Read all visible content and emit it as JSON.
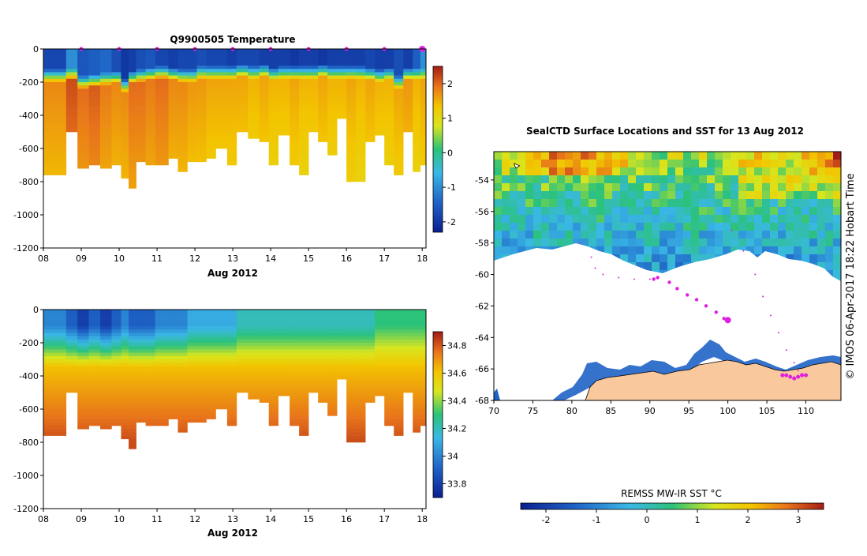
{
  "chart_data": [
    {
      "type": "heatmap",
      "id": "temperature",
      "title": "Q9900505  Temperature",
      "xlabel": "Aug 2012",
      "ylabel": "",
      "x_ticks": [
        "08",
        "09",
        "10",
        "11",
        "12",
        "13",
        "14",
        "15",
        "16",
        "17",
        "18"
      ],
      "y_ticks": [
        "0",
        "-200",
        "-400",
        "-600",
        "-800",
        "-1000",
        "-1200"
      ],
      "ylim": [
        -1200,
        0
      ],
      "xlim": [
        8.0,
        18.1
      ],
      "colorbar": {
        "ticks": [
          "-2",
          "-1",
          "0",
          "1",
          "2"
        ],
        "range": [
          -2.3,
          2.5
        ]
      },
      "profile_markers_day": [
        9.0,
        10.0,
        11.0,
        12.0,
        13.0,
        14.0,
        15.0,
        16.0,
        17.0,
        18.0
      ],
      "profiles": {
        "times": [
          8.0,
          8.6,
          8.9,
          9.2,
          9.5,
          9.8,
          10.05,
          10.25,
          10.45,
          10.7,
          10.95,
          11.3,
          11.55,
          11.8,
          12.05,
          12.3,
          12.55,
          12.85,
          13.1,
          13.4,
          13.7,
          13.95,
          14.2,
          14.5,
          14.75,
          15.0,
          15.25,
          15.5,
          15.75,
          16.0,
          16.25,
          16.5,
          16.75,
          17.0,
          17.25,
          17.5,
          17.75,
          17.95,
          18.1
        ],
        "max_depth": [
          750,
          500,
          710,
          690,
          720,
          700,
          780,
          840,
          670,
          690,
          690,
          650,
          730,
          670,
          680,
          650,
          600,
          700,
          500,
          530,
          550,
          700,
          520,
          700,
          750,
          500,
          560,
          640,
          420,
          800,
          800,
          550,
          520,
          700,
          750,
          500,
          740,
          700
        ],
        "surface_temp": [
          -1.8,
          -1.0,
          -1.6,
          -1.5,
          -1.4,
          -1.7,
          -2.0,
          -1.9,
          -1.7,
          -1.6,
          -1.8,
          -1.9,
          -1.8,
          -1.8,
          -1.7,
          -1.8,
          -1.8,
          -1.9,
          -1.8,
          -1.8,
          -1.9,
          -1.9,
          -1.9,
          -2.0,
          -1.9,
          -1.9,
          -2.0,
          -1.9,
          -1.9,
          -1.9,
          -1.9,
          -1.8,
          -1.9,
          -1.9,
          -1.7,
          -1.9,
          -1.5,
          -1.0
        ],
        "thermocline_depth": [
          160,
          150,
          200,
          190,
          180,
          170,
          220,
          170,
          160,
          150,
          140,
          150,
          160,
          160,
          140,
          140,
          140,
          140,
          130,
          140,
          130,
          150,
          140,
          140,
          140,
          140,
          130,
          140,
          140,
          140,
          140,
          150,
          160,
          150,
          200,
          150,
          150,
          150
        ],
        "core_temp": [
          1.8,
          2.2,
          2.0,
          2.1,
          1.9,
          1.8,
          1.8,
          2.0,
          2.0,
          1.9,
          2.0,
          1.8,
          1.8,
          1.7,
          1.7,
          1.6,
          1.6,
          1.6,
          1.6,
          1.5,
          1.6,
          1.5,
          1.5,
          1.6,
          1.5,
          1.5,
          1.6,
          1.5,
          1.5,
          1.6,
          1.5,
          1.6,
          1.5,
          1.5,
          1.6,
          1.7,
          1.5,
          1.6
        ]
      }
    },
    {
      "type": "heatmap",
      "id": "salinity",
      "title": "",
      "xlabel": "Aug 2012",
      "ylabel": "",
      "x_ticks": [
        "08",
        "09",
        "10",
        "11",
        "12",
        "13",
        "14",
        "15",
        "16",
        "17",
        "18"
      ],
      "y_ticks": [
        "0",
        "-200",
        "-400",
        "-600",
        "-800",
        "-1000",
        "-1200"
      ],
      "ylim": [
        -1200,
        0
      ],
      "xlim": [
        8.0,
        18.1
      ],
      "colorbar": {
        "ticks": [
          "33.8",
          "34",
          "34.2",
          "34.4",
          "34.6",
          "34.8"
        ],
        "range": [
          33.7,
          34.9
        ]
      },
      "profiles": {
        "times": [
          8.0,
          8.6,
          8.9,
          9.2,
          9.5,
          9.8,
          10.05,
          10.25,
          10.45,
          10.7,
          10.95,
          11.3,
          11.55,
          11.8,
          12.05,
          12.3,
          12.55,
          12.85,
          13.1,
          13.4,
          13.7,
          13.95,
          14.2,
          14.5,
          14.75,
          15.0,
          15.25,
          15.5,
          15.75,
          16.0,
          16.25,
          16.5,
          16.75,
          17.0,
          17.25,
          17.5,
          17.75,
          17.95,
          18.1
        ],
        "max_depth": [
          750,
          500,
          710,
          690,
          720,
          700,
          780,
          840,
          670,
          690,
          690,
          650,
          730,
          670,
          680,
          650,
          600,
          700,
          500,
          530,
          550,
          700,
          520,
          700,
          750,
          500,
          560,
          640,
          420,
          800,
          800,
          550,
          520,
          700,
          750,
          500,
          740,
          700
        ],
        "surface_sal": [
          34.0,
          33.9,
          33.8,
          33.9,
          33.8,
          33.9,
          34.0,
          33.9,
          33.9,
          33.9,
          34.0,
          34.0,
          34.0,
          34.1,
          34.1,
          34.1,
          34.1,
          34.1,
          34.2,
          34.2,
          34.2,
          34.2,
          34.2,
          34.2,
          34.2,
          34.2,
          34.2,
          34.2,
          34.2,
          34.2,
          34.2,
          34.2,
          34.3,
          34.3,
          34.3,
          34.3,
          34.3,
          34.3
        ]
      }
    },
    {
      "type": "heatmap",
      "id": "sst_map",
      "title": "SealCTD Surface Locations and SST for 13 Aug 2012",
      "xlabel": "",
      "ylabel": "",
      "x_ticks": [
        "70",
        "75",
        "80",
        "85",
        "90",
        "95",
        "100",
        "105",
        "110"
      ],
      "y_ticks": [
        "-54",
        "-56",
        "-58",
        "-60",
        "-62",
        "-64",
        "-66",
        "-68"
      ],
      "xlim": [
        70,
        114.5
      ],
      "ylim": [
        -68,
        -52.2
      ],
      "colorbar": {
        "label": "REMSS MW-IR SST °C",
        "ticks": [
          "-2",
          "-1",
          "0",
          "1",
          "2",
          "3"
        ],
        "range": [
          -2.5,
          3.5
        ]
      },
      "side_label": "© IMOS 06-Apr-2017 18:22 Hobart Time",
      "track_large": [
        [
          90.5,
          -60.3
        ],
        [
          91.0,
          -60.2
        ],
        [
          92.5,
          -60.5
        ],
        [
          93.5,
          -60.9
        ],
        [
          94.8,
          -61.3
        ],
        [
          96.0,
          -61.6
        ],
        [
          97.2,
          -62.0
        ],
        [
          98.5,
          -62.4
        ],
        [
          99.5,
          -62.8
        ],
        [
          100.0,
          -62.9
        ]
      ],
      "track_small_a": [
        [
          81.0,
          -58.0
        ],
        [
          82.5,
          -58.9
        ],
        [
          83.0,
          -59.6
        ],
        [
          84.0,
          -60.0
        ],
        [
          86.0,
          -60.2
        ],
        [
          88.0,
          -60.3
        ],
        [
          90.0,
          -60.3
        ]
      ],
      "track_small_b": [
        [
          100.5,
          -57.2
        ],
        [
          102.0,
          -58.5
        ],
        [
          103.5,
          -60.0
        ],
        [
          104.5,
          -61.4
        ],
        [
          105.5,
          -62.6
        ],
        [
          106.5,
          -63.7
        ],
        [
          107.5,
          -64.8
        ],
        [
          108.5,
          -65.6
        ],
        [
          109.0,
          -66.1
        ],
        [
          109.5,
          -66.3
        ]
      ],
      "track_end": [
        [
          107.0,
          -66.4
        ],
        [
          107.5,
          -66.4
        ],
        [
          108.0,
          -66.5
        ],
        [
          108.5,
          -66.6
        ],
        [
          109.0,
          -66.5
        ],
        [
          109.5,
          -66.4
        ],
        [
          110.0,
          -66.4
        ]
      ],
      "start_marker": [
        73.0,
        -53.1
      ]
    }
  ]
}
